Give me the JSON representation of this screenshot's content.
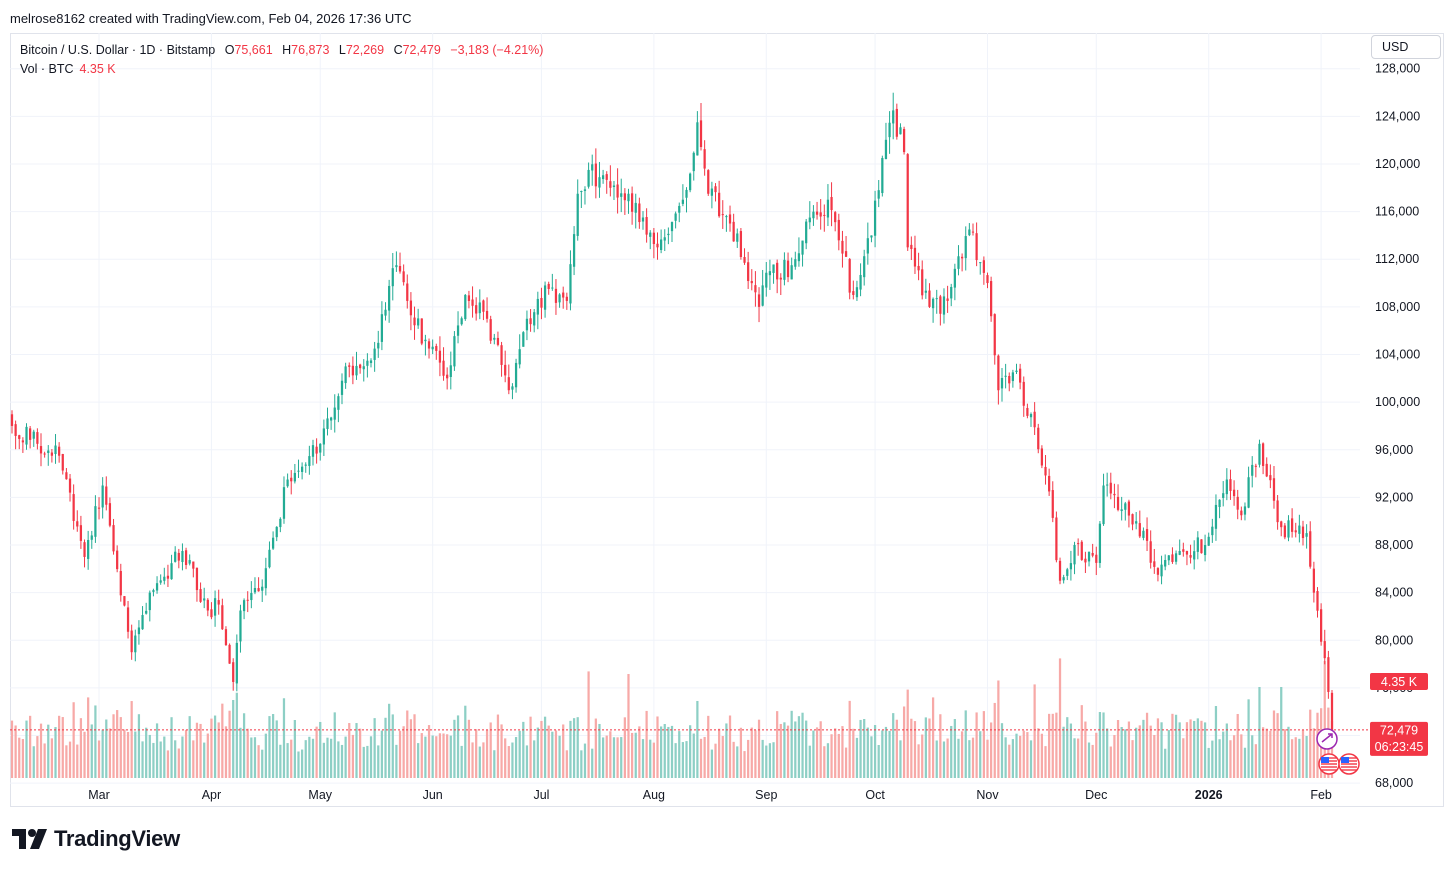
{
  "caption": "melrose8162 created with TradingView.com, Feb 04, 2026 17:36 UTC",
  "legend": {
    "symbol": "Bitcoin / U.S. Dollar · 1D · Bitstamp",
    "open_label": "O",
    "open": "75,661",
    "high_label": "H",
    "high": "76,873",
    "low_label": "L",
    "low": "72,269",
    "close_label": "C",
    "close": "72,479",
    "change": "−3,183 (−4.21%)",
    "vol_label": "Vol · BTC",
    "vol": "4.35 K"
  },
  "currency_button": "USD",
  "price_tags": {
    "last_price": "72,479",
    "countdown": "06:23:45",
    "volume": "4.35 K"
  },
  "brand": "TradingView",
  "colors": {
    "up": "#22ab94",
    "down": "#f23645",
    "up_vol": "#8dcfc5",
    "down_vol": "#f7a9a7",
    "grid": "#f0f3fa"
  },
  "icons": [
    "tradingview-logo-icon",
    "us-flag-icon",
    "event-icon"
  ],
  "chart_data": {
    "type": "candlestick",
    "symbol": "BTCUSD",
    "interval": "1D",
    "ylim": [
      66000,
      131000
    ],
    "y_ticks": [
      68000,
      72000,
      76000,
      80000,
      84000,
      88000,
      92000,
      96000,
      100000,
      104000,
      108000,
      112000,
      116000,
      120000,
      124000,
      128000
    ],
    "y_tick_labels": [
      "68,000",
      "72,000",
      "76,000",
      "80,000",
      "84,000",
      "88,000",
      "92,000",
      "96,000",
      "100,000",
      "104,000",
      "108,000",
      "112,000",
      "116,000",
      "120,000",
      "124,000",
      "128,000"
    ],
    "x_ticks": [
      {
        "label": "Mar",
        "date": "2025-03-01"
      },
      {
        "label": "Apr",
        "date": "2025-04-01"
      },
      {
        "label": "May",
        "date": "2025-05-01"
      },
      {
        "label": "Jun",
        "date": "2025-06-01"
      },
      {
        "label": "Jul",
        "date": "2025-07-01"
      },
      {
        "label": "Aug",
        "date": "2025-08-01"
      },
      {
        "label": "Sep",
        "date": "2025-09-01"
      },
      {
        "label": "Oct",
        "date": "2025-10-01"
      },
      {
        "label": "Nov",
        "date": "2025-11-01"
      },
      {
        "label": "Dec",
        "date": "2025-12-01"
      },
      {
        "label": "2026",
        "date": "2026-01-01",
        "bold": true
      },
      {
        "label": "Feb",
        "date": "2026-02-01"
      }
    ],
    "first_date": "2025-02-05",
    "last_date": "2026-02-04",
    "last_price": 72479,
    "close_anchors": [
      [
        "2025-02-05",
        98000
      ],
      [
        "2025-02-12",
        96500
      ],
      [
        "2025-02-18",
        95500
      ],
      [
        "2025-02-25",
        87000
      ],
      [
        "2025-03-02",
        93000
      ],
      [
        "2025-03-10",
        79000
      ],
      [
        "2025-03-15",
        84000
      ],
      [
        "2025-03-24",
        87500
      ],
      [
        "2025-03-31",
        82500
      ],
      [
        "2025-04-03",
        83000
      ],
      [
        "2025-04-07",
        76500
      ],
      [
        "2025-04-09",
        82500
      ],
      [
        "2025-04-15",
        84500
      ],
      [
        "2025-04-22",
        93500
      ],
      [
        "2025-05-01",
        96500
      ],
      [
        "2025-05-08",
        103000
      ],
      [
        "2025-05-15",
        103500
      ],
      [
        "2025-05-22",
        111500
      ],
      [
        "2025-05-25",
        108500
      ],
      [
        "2025-05-31",
        104500
      ],
      [
        "2025-06-05",
        102000
      ],
      [
        "2025-06-10",
        109000
      ],
      [
        "2025-06-16",
        107000
      ],
      [
        "2025-06-22",
        101000
      ],
      [
        "2025-06-27",
        107000
      ],
      [
        "2025-07-03",
        109500
      ],
      [
        "2025-07-08",
        108500
      ],
      [
        "2025-07-11",
        117500
      ],
      [
        "2025-07-14",
        119500
      ],
      [
        "2025-07-20",
        118000
      ],
      [
        "2025-07-25",
        117500
      ],
      [
        "2025-08-02",
        113000
      ],
      [
        "2025-08-09",
        117000
      ],
      [
        "2025-08-13",
        123500
      ],
      [
        "2025-08-16",
        117500
      ],
      [
        "2025-08-22",
        115000
      ],
      [
        "2025-08-30",
        108000
      ],
      [
        "2025-09-02",
        111000
      ],
      [
        "2025-09-08",
        111500
      ],
      [
        "2025-09-13",
        115500
      ],
      [
        "2025-09-18",
        117000
      ],
      [
        "2025-09-25",
        109000
      ],
      [
        "2025-09-30",
        114000
      ],
      [
        "2025-10-03",
        120500
      ],
      [
        "2025-10-06",
        124500
      ],
      [
        "2025-10-09",
        121000
      ],
      [
        "2025-10-10",
        113000
      ],
      [
        "2025-10-16",
        108000
      ],
      [
        "2025-10-21",
        108500
      ],
      [
        "2025-10-27",
        114500
      ],
      [
        "2025-11-01",
        110000
      ],
      [
        "2025-11-04",
        101000
      ],
      [
        "2025-11-08",
        102500
      ],
      [
        "2025-11-13",
        99000
      ],
      [
        "2025-11-18",
        92500
      ],
      [
        "2025-11-21",
        85000
      ],
      [
        "2025-11-25",
        88000
      ],
      [
        "2025-12-01",
        86500
      ],
      [
        "2025-12-03",
        93000
      ],
      [
        "2025-12-08",
        91000
      ],
      [
        "2025-12-12",
        90000
      ],
      [
        "2025-12-18",
        85500
      ],
      [
        "2025-12-24",
        87500
      ],
      [
        "2025-12-31",
        88000
      ],
      [
        "2026-01-06",
        93500
      ],
      [
        "2026-01-10",
        90500
      ],
      [
        "2026-01-15",
        96500
      ],
      [
        "2026-01-21",
        89500
      ],
      [
        "2026-01-28",
        89000
      ],
      [
        "2026-01-30",
        84000
      ],
      [
        "2026-02-02",
        78500
      ],
      [
        "2026-02-03",
        75661
      ],
      [
        "2026-02-04",
        72479
      ]
    ],
    "volume_spikes": [
      {
        "date": "2025-02-26",
        "level": 0.62,
        "dir": "down"
      },
      {
        "date": "2025-03-03",
        "level": 0.45,
        "dir": "up"
      },
      {
        "date": "2025-04-07",
        "level": 0.6,
        "dir": "up"
      },
      {
        "date": "2025-07-14",
        "level": 0.82,
        "dir": "down"
      },
      {
        "date": "2025-07-25",
        "level": 0.8,
        "dir": "down"
      },
      {
        "date": "2025-10-10",
        "level": 0.68,
        "dir": "down"
      },
      {
        "date": "2025-10-17",
        "level": 0.62,
        "dir": "down"
      },
      {
        "date": "2025-11-04",
        "level": 0.75,
        "dir": "down"
      },
      {
        "date": "2025-11-14",
        "level": 0.72,
        "dir": "down"
      },
      {
        "date": "2025-11-21",
        "level": 0.92,
        "dir": "down"
      },
      {
        "date": "2026-01-15",
        "level": 0.7,
        "dir": "up"
      },
      {
        "date": "2026-01-21",
        "level": 0.7,
        "dir": "up"
      },
      {
        "date": "2026-02-02",
        "level": 0.9,
        "dir": "down"
      }
    ]
  }
}
